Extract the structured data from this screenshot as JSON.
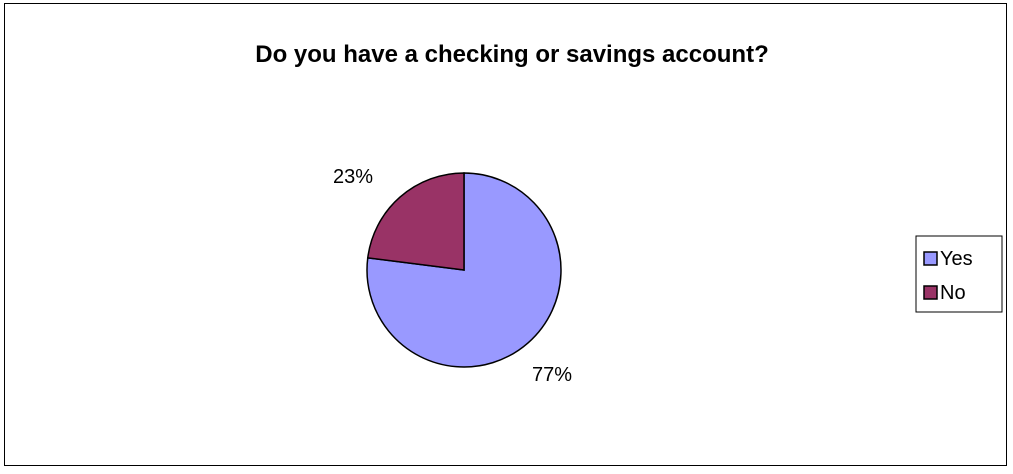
{
  "chart_data": {
    "type": "pie",
    "title": "Do you have a checking or savings account?",
    "categories": [
      "Yes",
      "No"
    ],
    "values": [
      77,
      23
    ],
    "labels": [
      "77%",
      "23%"
    ],
    "colors": [
      "#9999ff",
      "#993366"
    ],
    "legend_position": "right",
    "start_angle_deg": 0,
    "direction": "clockwise"
  }
}
